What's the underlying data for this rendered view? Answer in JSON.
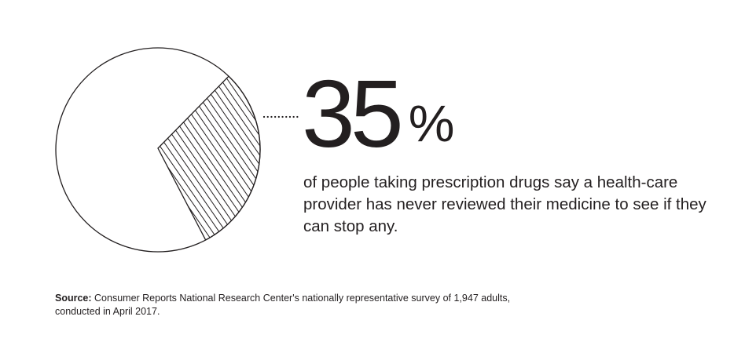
{
  "chart_data": {
    "type": "pie",
    "slices": [
      {
        "label": "Highlighted share",
        "value": 35,
        "pattern": "diagonal-hatch"
      },
      {
        "label": "Remainder",
        "value": 65,
        "pattern": "none"
      }
    ]
  },
  "stat": {
    "number": "35",
    "unit": "%",
    "description": "of people taking prescription drugs say a health-care provider has never reviewed their medicine to see if they can stop any."
  },
  "source": {
    "label": "Source:",
    "text": " Consumer Reports National Research Center's nationally representative survey of 1,947 adults, conducted in April 2017."
  },
  "colors": {
    "ink": "#231f20",
    "background": "#ffffff"
  }
}
